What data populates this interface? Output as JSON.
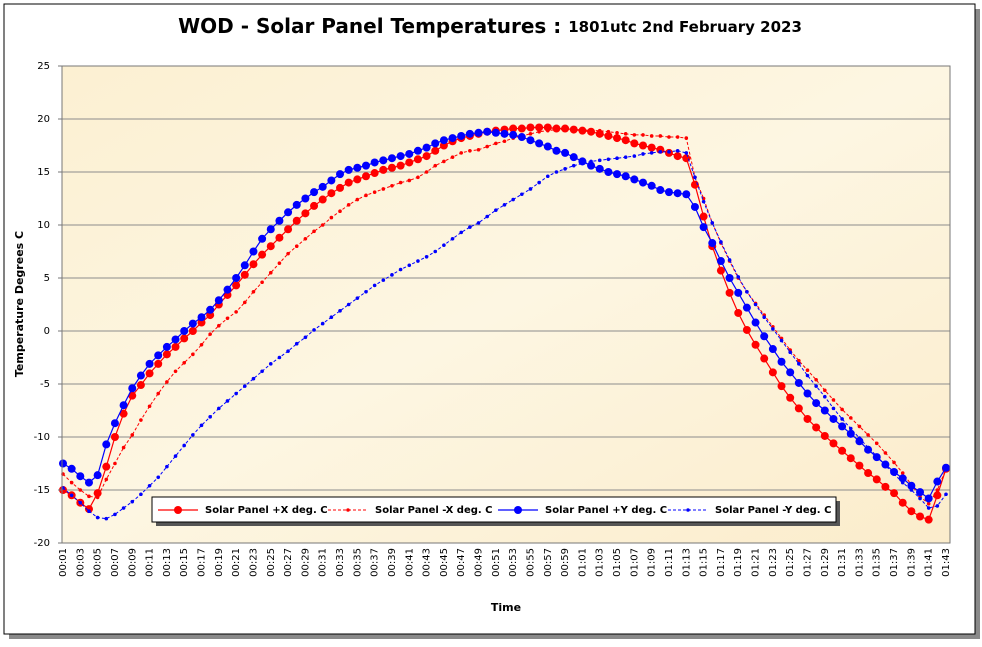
{
  "chart_data": {
    "type": "line",
    "title": "WOD - Solar Panel Temperatures : ",
    "subtitle": "1801utc 2nd February 2023",
    "x_label": "Time",
    "y_label": "Temperature Degrees C",
    "ylim": [
      -20,
      25
    ],
    "yticks": [
      -20,
      -15,
      -10,
      -5,
      0,
      5,
      10,
      15,
      20,
      25
    ],
    "grid": true,
    "legend": "bottom",
    "categories": [
      "00:01",
      null,
      "00:03",
      null,
      "00:05",
      null,
      "00:07",
      null,
      "00:09",
      null,
      "00:11",
      null,
      "00:13",
      null,
      "00:15",
      null,
      "00:17",
      null,
      "00:19",
      null,
      "00:21",
      null,
      "00:23",
      null,
      "00:25",
      null,
      "00:27",
      null,
      "00:29",
      null,
      "00:31",
      null,
      "00:33",
      null,
      "00:35",
      null,
      "00:37",
      null,
      "00:39",
      null,
      "00:41",
      null,
      "00:43",
      null,
      "00:45",
      null,
      "00:47",
      null,
      "00:49",
      null,
      "00:51",
      null,
      "00:53",
      null,
      "00:55",
      null,
      "00:57",
      null,
      "00:59",
      null,
      "01:01",
      null,
      "01:03",
      null,
      "01:05",
      null,
      "01:07",
      null,
      "01:09",
      null,
      "01:11",
      null,
      "01:13",
      null,
      "01:15",
      null,
      "01:17",
      null,
      "01:19",
      null,
      "01:21",
      null,
      "01:23",
      null,
      "01:25",
      null,
      "01:27",
      null,
      "01:29",
      null,
      "01:31",
      null,
      "01:33",
      null,
      "01:35",
      null,
      "01:37",
      null,
      "01:39",
      null,
      "01:41",
      null,
      "01:43"
    ],
    "series": [
      {
        "name": "Solar Panel +X deg. C",
        "color": "#ff0000",
        "dashed": false,
        "marker": "large",
        "values": [
          -15.0,
          -15.5,
          -16.2,
          -16.8,
          -15.3,
          -12.8,
          -10.0,
          -7.8,
          -6.1,
          -5.1,
          -4.0,
          -3.1,
          -2.2,
          -1.5,
          -0.7,
          0.0,
          0.8,
          1.5,
          2.5,
          3.4,
          4.3,
          5.3,
          6.3,
          7.2,
          8.0,
          8.8,
          9.6,
          10.4,
          11.1,
          11.8,
          12.4,
          13.0,
          13.5,
          14.0,
          14.3,
          14.6,
          14.9,
          15.2,
          15.4,
          15.6,
          15.9,
          16.2,
          16.5,
          17.0,
          17.5,
          17.9,
          18.2,
          18.4,
          18.6,
          18.8,
          18.9,
          19.0,
          19.1,
          19.1,
          19.2,
          19.2,
          19.2,
          19.1,
          19.1,
          19.0,
          18.9,
          18.8,
          18.6,
          18.4,
          18.2,
          18.0,
          17.7,
          17.5,
          17.3,
          17.1,
          16.8,
          16.5,
          16.3,
          13.8,
          10.8,
          8.0,
          5.7,
          3.6,
          1.7,
          0.1,
          -1.3,
          -2.6,
          -3.9,
          -5.2,
          -6.3,
          -7.3,
          -8.3,
          -9.1,
          -9.9,
          -10.6,
          -11.3,
          -12.0,
          -12.7,
          -13.4,
          -14.0,
          -14.7,
          -15.3,
          -16.2,
          -17.0,
          -17.5,
          -17.8,
          -15.5,
          -13.0
        ]
      },
      {
        "name": "Solar Panel -X deg. C",
        "color": "#ff0000",
        "dashed": true,
        "marker": "small",
        "values": [
          -13.5,
          -14.3,
          -15.0,
          -15.6,
          -15.7,
          -14.0,
          -12.5,
          -11.0,
          -9.8,
          -8.4,
          -7.1,
          -5.9,
          -4.8,
          -3.8,
          -3.0,
          -2.2,
          -1.3,
          -0.3,
          0.5,
          1.2,
          1.8,
          2.7,
          3.7,
          4.6,
          5.5,
          6.4,
          7.3,
          8.0,
          8.7,
          9.4,
          10.0,
          10.7,
          11.3,
          11.9,
          12.4,
          12.8,
          13.1,
          13.4,
          13.7,
          14.0,
          14.2,
          14.5,
          15.0,
          15.6,
          16.0,
          16.4,
          16.8,
          17.0,
          17.1,
          17.4,
          17.7,
          17.9,
          18.2,
          18.4,
          18.6,
          18.8,
          18.9,
          19.0,
          19.0,
          19.0,
          19.0,
          18.9,
          18.9,
          18.8,
          18.7,
          18.6,
          18.5,
          18.5,
          18.4,
          18.4,
          18.3,
          18.3,
          18.2,
          14.5,
          12.5,
          10.2,
          8.3,
          6.6,
          5.0,
          3.7,
          2.6,
          1.5,
          0.4,
          -0.7,
          -1.8,
          -2.8,
          -3.7,
          -4.6,
          -5.6,
          -6.5,
          -7.4,
          -8.2,
          -9.0,
          -9.8,
          -10.6,
          -11.5,
          -12.4,
          -13.4,
          -14.5,
          -15.6,
          -16.3,
          -15.0,
          -13.0
        ]
      },
      {
        "name": "Solar Panel +Y deg. C",
        "color": "#0000ff",
        "dashed": false,
        "marker": "large",
        "values": [
          -12.5,
          -13.0,
          -13.7,
          -14.3,
          -13.6,
          -10.7,
          -8.7,
          -7.0,
          -5.4,
          -4.2,
          -3.1,
          -2.3,
          -1.5,
          -0.8,
          0.0,
          0.7,
          1.3,
          2.0,
          2.9,
          3.9,
          5.0,
          6.2,
          7.5,
          8.7,
          9.6,
          10.4,
          11.2,
          11.9,
          12.5,
          13.1,
          13.6,
          14.2,
          14.8,
          15.2,
          15.4,
          15.6,
          15.9,
          16.1,
          16.3,
          16.5,
          16.7,
          17.0,
          17.3,
          17.7,
          18.0,
          18.2,
          18.4,
          18.6,
          18.7,
          18.8,
          18.7,
          18.6,
          18.5,
          18.3,
          18.0,
          17.7,
          17.4,
          17.0,
          16.8,
          16.4,
          16.0,
          15.6,
          15.3,
          15.0,
          14.8,
          14.6,
          14.3,
          14.0,
          13.7,
          13.3,
          13.1,
          13.0,
          12.9,
          11.7,
          9.8,
          8.3,
          6.6,
          5.0,
          3.6,
          2.2,
          0.8,
          -0.5,
          -1.7,
          -2.9,
          -3.9,
          -4.9,
          -5.9,
          -6.8,
          -7.5,
          -8.3,
          -9.0,
          -9.7,
          -10.4,
          -11.2,
          -11.9,
          -12.6,
          -13.3,
          -13.9,
          -14.6,
          -15.2,
          -15.8,
          -14.2,
          -12.9
        ]
      },
      {
        "name": "Solar Panel -Y deg. C",
        "color": "#0000ff",
        "dashed": true,
        "marker": "small",
        "values": [
          -14.8,
          -15.5,
          -16.2,
          -17.0,
          -17.6,
          -17.7,
          -17.3,
          -16.7,
          -16.1,
          -15.4,
          -14.6,
          -13.8,
          -12.8,
          -11.8,
          -10.8,
          -9.8,
          -8.9,
          -8.1,
          -7.3,
          -6.6,
          -5.9,
          -5.2,
          -4.5,
          -3.8,
          -3.1,
          -2.5,
          -1.9,
          -1.2,
          -0.6,
          0.1,
          0.7,
          1.3,
          1.9,
          2.5,
          3.1,
          3.7,
          4.3,
          4.8,
          5.3,
          5.8,
          6.2,
          6.6,
          7.0,
          7.5,
          8.1,
          8.7,
          9.3,
          9.8,
          10.2,
          10.8,
          11.4,
          11.9,
          12.4,
          12.9,
          13.4,
          14.0,
          14.6,
          15.0,
          15.3,
          15.6,
          15.8,
          16.0,
          16.1,
          16.2,
          16.3,
          16.4,
          16.5,
          16.7,
          16.8,
          16.9,
          16.9,
          17.0,
          16.8,
          14.5,
          12.2,
          10.2,
          8.4,
          6.7,
          5.1,
          3.7,
          2.5,
          1.3,
          0.2,
          -0.9,
          -2.0,
          -3.1,
          -4.2,
          -5.2,
          -6.2,
          -7.3,
          -8.3,
          -9.2,
          -10.1,
          -11.0,
          -11.8,
          -12.7,
          -13.5,
          -14.3,
          -15.0,
          -15.8,
          -16.7,
          -16.5,
          -15.4
        ]
      }
    ]
  }
}
